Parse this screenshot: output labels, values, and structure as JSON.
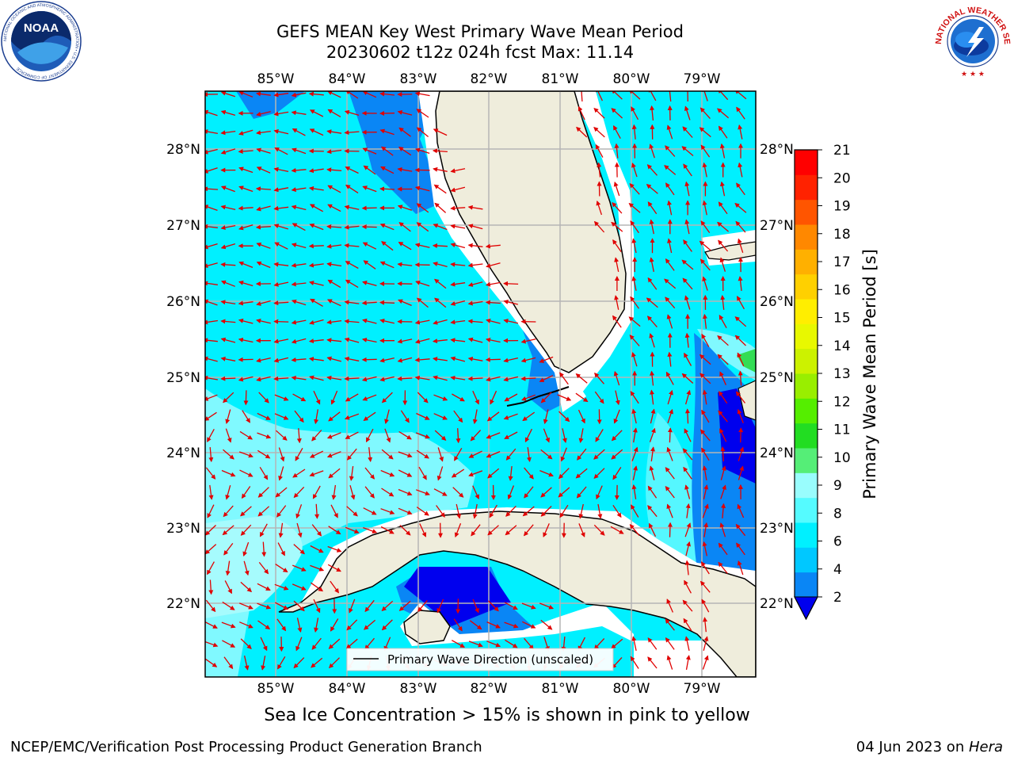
{
  "header": {
    "title_line1": "GEFS MEAN Key West Primary Wave Mean Period",
    "title_line2": "20230602 t12z 024h fcst   Max: 11.14"
  },
  "logos": {
    "left": "NOAA",
    "left_ring": "NATIONAL OCEANIC AND ATMOSPHERIC ADMINISTRATION • U.S. DEPARTMENT OF COMMERCE",
    "right_ring": "NATIONAL WEATHER SERVICE"
  },
  "map": {
    "lon_labels": [
      "85°W",
      "84°W",
      "83°W",
      "82°W",
      "81°W",
      "80°W",
      "79°W"
    ],
    "lat_labels": [
      "28°N",
      "27°N",
      "26°N",
      "25°N",
      "24°N",
      "23°N",
      "22°N"
    ],
    "legend": "Primary Wave Direction (unscaled)",
    "arrow_color": "#e00000",
    "colors": {
      "ocean_base": "#00f0ff",
      "land": "#efeddc",
      "light_cyan": "#80f9ff",
      "blue": "#0a86f5",
      "dark_blue": "#0000ee",
      "white_mask": "#ffffff",
      "green": "#33dd55"
    }
  },
  "colorbar": {
    "label": "Primary Wave Mean Period [s]",
    "ticks": [
      "2",
      "4",
      "6",
      "8",
      "9",
      "10",
      "11",
      "12",
      "13",
      "14",
      "15",
      "16",
      "17",
      "18",
      "19",
      "20",
      "21"
    ],
    "band_colors": [
      "#0a86f5",
      "#00c8ff",
      "#00f0ff",
      "#55fbff",
      "#99fdfd",
      "#55ee77",
      "#22dd22",
      "#55ee00",
      "#99ee00",
      "#ccf200",
      "#e8f800",
      "#ffee00",
      "#ffd000",
      "#ffb000",
      "#ff8800",
      "#ff5500",
      "#ff2200",
      "#ff0000"
    ],
    "under_color": "#0000ee"
  },
  "footer": {
    "note": "Sea Ice Concentration > 15% is shown in pink to yellow",
    "credit": "NCEP/EMC/Verification Post Processing Product Generation Branch",
    "date": "04 Jun 2023 on ",
    "host": "Hera"
  }
}
